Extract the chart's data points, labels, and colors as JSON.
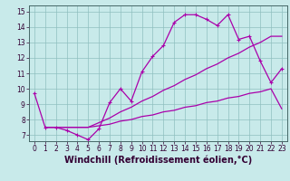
{
  "xlabel": "Windchill (Refroidissement éolien,°C)",
  "xlim": [
    -0.5,
    23.5
  ],
  "ylim": [
    6.6,
    15.4
  ],
  "xticks": [
    0,
    1,
    2,
    3,
    4,
    5,
    6,
    7,
    8,
    9,
    10,
    11,
    12,
    13,
    14,
    15,
    16,
    17,
    18,
    19,
    20,
    21,
    22,
    23
  ],
  "yticks": [
    7,
    8,
    9,
    10,
    11,
    12,
    13,
    14,
    15
  ],
  "bg_color": "#c8eaea",
  "line_color": "#aa00aa",
  "series": [
    {
      "x": [
        0,
        1,
        2,
        3,
        4,
        5,
        6,
        7,
        8,
        9,
        10,
        11,
        12,
        13,
        14,
        15,
        16,
        17,
        18,
        19,
        20,
        21,
        22,
        23
      ],
      "y": [
        9.7,
        7.5,
        7.5,
        7.3,
        7.0,
        6.7,
        7.4,
        9.1,
        10.0,
        9.2,
        11.1,
        12.1,
        12.8,
        14.3,
        14.8,
        14.8,
        14.5,
        14.1,
        14.8,
        13.2,
        13.4,
        11.8,
        10.4,
        11.3
      ],
      "marker": true
    },
    {
      "x": [
        1,
        2,
        3,
        4,
        5,
        6,
        7,
        8,
        9,
        10,
        11,
        12,
        13,
        14,
        15,
        16,
        17,
        18,
        19,
        20,
        21,
        22,
        23
      ],
      "y": [
        7.5,
        7.5,
        7.5,
        7.5,
        7.5,
        7.8,
        8.1,
        8.5,
        8.8,
        9.2,
        9.5,
        9.9,
        10.2,
        10.6,
        10.9,
        11.3,
        11.6,
        12.0,
        12.3,
        12.7,
        13.0,
        13.4,
        13.4
      ],
      "marker": false
    },
    {
      "x": [
        1,
        2,
        3,
        4,
        5,
        6,
        7,
        8,
        9,
        10,
        11,
        12,
        13,
        14,
        15,
        16,
        17,
        18,
        19,
        20,
        21,
        22,
        23
      ],
      "y": [
        7.5,
        7.5,
        7.5,
        7.5,
        7.5,
        7.6,
        7.7,
        7.9,
        8.0,
        8.2,
        8.3,
        8.5,
        8.6,
        8.8,
        8.9,
        9.1,
        9.2,
        9.4,
        9.5,
        9.7,
        9.8,
        10.0,
        8.7
      ],
      "marker": false
    }
  ],
  "grid_color": "#8fbfbf",
  "tick_fontsize": 5.5,
  "label_fontsize": 7.0,
  "linewidth": 0.9
}
